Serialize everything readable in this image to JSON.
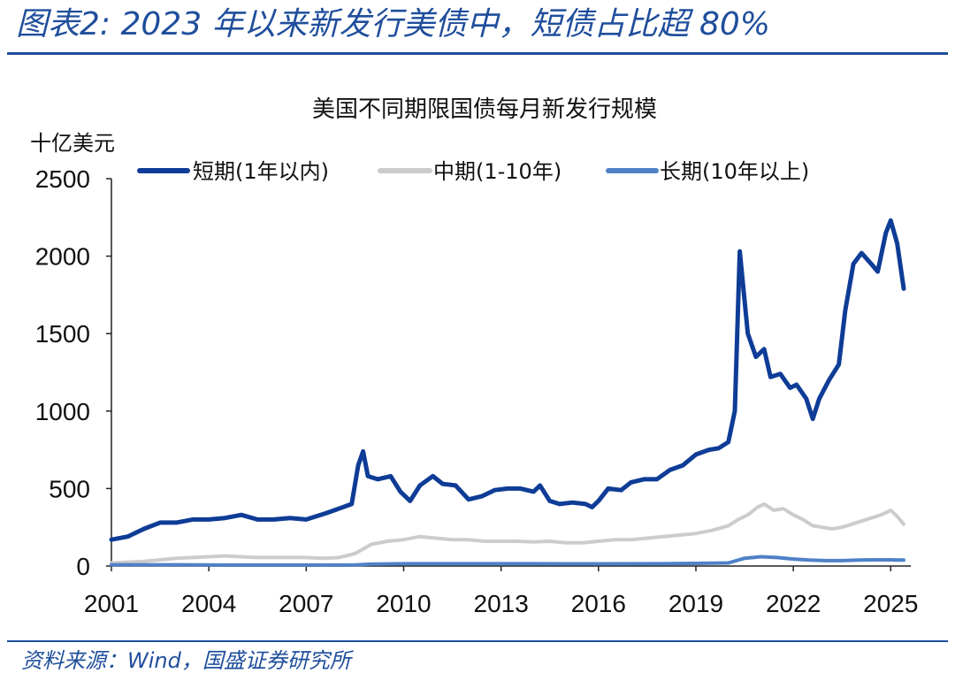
{
  "page": {
    "title": "图表2: 2023 年以来新发行美债中，短债占比超 80%",
    "source": "资料来源：Wind，国盛证券研究所"
  },
  "chart_data": {
    "type": "line",
    "title": "美国不同期限国债每月新发行规模",
    "ylabel": "十亿美元",
    "xlabel": "",
    "xlim": [
      2001,
      2025.4
    ],
    "ylim": [
      0,
      2500
    ],
    "x_ticks": [
      "2001",
      "2004",
      "2007",
      "2010",
      "2013",
      "2016",
      "2019",
      "2022",
      "2025"
    ],
    "y_ticks": [
      "0",
      "500",
      "1000",
      "1500",
      "2000",
      "2500"
    ],
    "grid": false,
    "legend_position": "top",
    "series": [
      {
        "name": "短期(1年以内)",
        "color": "#0E3C96",
        "points": [
          [
            2001.0,
            170
          ],
          [
            2001.5,
            190
          ],
          [
            2002.0,
            240
          ],
          [
            2002.5,
            280
          ],
          [
            2003.0,
            280
          ],
          [
            2003.5,
            300
          ],
          [
            2004.0,
            300
          ],
          [
            2004.5,
            310
          ],
          [
            2005.0,
            330
          ],
          [
            2005.5,
            300
          ],
          [
            2006.0,
            300
          ],
          [
            2006.5,
            310
          ],
          [
            2007.0,
            300
          ],
          [
            2007.3,
            320
          ],
          [
            2007.6,
            340
          ],
          [
            2008.0,
            370
          ],
          [
            2008.4,
            400
          ],
          [
            2008.6,
            650
          ],
          [
            2008.75,
            740
          ],
          [
            2008.9,
            580
          ],
          [
            2009.2,
            560
          ],
          [
            2009.6,
            580
          ],
          [
            2009.9,
            480
          ],
          [
            2010.2,
            420
          ],
          [
            2010.5,
            520
          ],
          [
            2010.9,
            580
          ],
          [
            2011.2,
            530
          ],
          [
            2011.6,
            520
          ],
          [
            2012.0,
            430
          ],
          [
            2012.4,
            450
          ],
          [
            2012.8,
            490
          ],
          [
            2013.2,
            500
          ],
          [
            2013.6,
            500
          ],
          [
            2014.0,
            480
          ],
          [
            2014.2,
            520
          ],
          [
            2014.5,
            420
          ],
          [
            2014.8,
            400
          ],
          [
            2015.2,
            410
          ],
          [
            2015.6,
            400
          ],
          [
            2015.8,
            380
          ],
          [
            2016.0,
            420
          ],
          [
            2016.3,
            500
          ],
          [
            2016.7,
            490
          ],
          [
            2017.0,
            540
          ],
          [
            2017.4,
            560
          ],
          [
            2017.8,
            560
          ],
          [
            2018.2,
            620
          ],
          [
            2018.6,
            650
          ],
          [
            2019.0,
            720
          ],
          [
            2019.4,
            750
          ],
          [
            2019.7,
            760
          ],
          [
            2020.0,
            800
          ],
          [
            2020.2,
            1000
          ],
          [
            2020.35,
            2030
          ],
          [
            2020.6,
            1500
          ],
          [
            2020.85,
            1350
          ],
          [
            2021.1,
            1400
          ],
          [
            2021.3,
            1220
          ],
          [
            2021.6,
            1240
          ],
          [
            2021.9,
            1150
          ],
          [
            2022.1,
            1170
          ],
          [
            2022.4,
            1080
          ],
          [
            2022.6,
            950
          ],
          [
            2022.8,
            1080
          ],
          [
            2023.1,
            1200
          ],
          [
            2023.4,
            1300
          ],
          [
            2023.6,
            1650
          ],
          [
            2023.85,
            1950
          ],
          [
            2024.1,
            2020
          ],
          [
            2024.4,
            1950
          ],
          [
            2024.6,
            1900
          ],
          [
            2024.85,
            2150
          ],
          [
            2025.0,
            2230
          ],
          [
            2025.2,
            2080
          ],
          [
            2025.4,
            1790
          ]
        ]
      },
      {
        "name": "中期(1-10年)",
        "color": "#CCCCCC",
        "points": [
          [
            2001.0,
            20
          ],
          [
            2001.5,
            25
          ],
          [
            2002.0,
            30
          ],
          [
            2002.5,
            40
          ],
          [
            2003.0,
            50
          ],
          [
            2003.5,
            55
          ],
          [
            2004.0,
            60
          ],
          [
            2004.5,
            65
          ],
          [
            2005.0,
            60
          ],
          [
            2005.5,
            55
          ],
          [
            2006.0,
            55
          ],
          [
            2006.5,
            55
          ],
          [
            2007.0,
            55
          ],
          [
            2007.5,
            50
          ],
          [
            2008.0,
            55
          ],
          [
            2008.5,
            80
          ],
          [
            2009.0,
            140
          ],
          [
            2009.5,
            160
          ],
          [
            2010.0,
            170
          ],
          [
            2010.5,
            190
          ],
          [
            2011.0,
            180
          ],
          [
            2011.5,
            170
          ],
          [
            2012.0,
            170
          ],
          [
            2012.5,
            160
          ],
          [
            2013.0,
            160
          ],
          [
            2013.5,
            160
          ],
          [
            2014.0,
            155
          ],
          [
            2014.5,
            160
          ],
          [
            2015.0,
            150
          ],
          [
            2015.5,
            150
          ],
          [
            2016.0,
            160
          ],
          [
            2016.5,
            170
          ],
          [
            2017.0,
            170
          ],
          [
            2017.5,
            180
          ],
          [
            2018.0,
            190
          ],
          [
            2018.5,
            200
          ],
          [
            2019.0,
            210
          ],
          [
            2019.5,
            230
          ],
          [
            2020.0,
            260
          ],
          [
            2020.3,
            300
          ],
          [
            2020.6,
            330
          ],
          [
            2020.9,
            380
          ],
          [
            2021.1,
            400
          ],
          [
            2021.4,
            360
          ],
          [
            2021.7,
            370
          ],
          [
            2022.0,
            330
          ],
          [
            2022.3,
            300
          ],
          [
            2022.6,
            260
          ],
          [
            2022.9,
            250
          ],
          [
            2023.2,
            240
          ],
          [
            2023.5,
            250
          ],
          [
            2023.8,
            270
          ],
          [
            2024.1,
            290
          ],
          [
            2024.4,
            310
          ],
          [
            2024.7,
            330
          ],
          [
            2025.0,
            360
          ],
          [
            2025.2,
            320
          ],
          [
            2025.4,
            270
          ]
        ]
      },
      {
        "name": "长期(10年以上)",
        "color": "#4F81C7",
        "points": [
          [
            2001.0,
            8
          ],
          [
            2003.0,
            8
          ],
          [
            2005.0,
            6
          ],
          [
            2007.0,
            6
          ],
          [
            2008.5,
            7
          ],
          [
            2009.0,
            12
          ],
          [
            2010.0,
            15
          ],
          [
            2012.0,
            15
          ],
          [
            2014.0,
            15
          ],
          [
            2016.0,
            14
          ],
          [
            2018.0,
            15
          ],
          [
            2019.0,
            17
          ],
          [
            2020.0,
            20
          ],
          [
            2020.5,
            50
          ],
          [
            2021.0,
            60
          ],
          [
            2021.5,
            55
          ],
          [
            2022.0,
            45
          ],
          [
            2022.5,
            38
          ],
          [
            2023.0,
            35
          ],
          [
            2023.5,
            35
          ],
          [
            2024.0,
            38
          ],
          [
            2024.5,
            40
          ],
          [
            2025.0,
            40
          ],
          [
            2025.4,
            38
          ]
        ]
      }
    ]
  }
}
